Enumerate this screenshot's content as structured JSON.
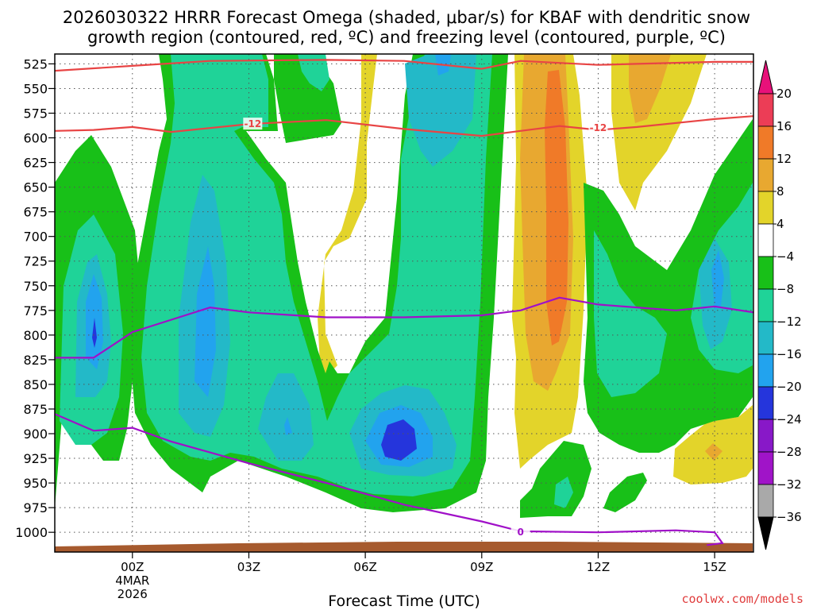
{
  "chart_data": {
    "type": "contour",
    "title_line1": "2026030322 HRRR Forecast Omega (shaded, μbar/s) for KBAF with dendritic snow",
    "title_line2": "growth region (contoured, red, ºC) and freezing level (contoured, purple, ºC)",
    "xlabel": "Forecast Time (UTC)",
    "credit": "coolwx.com/models",
    "x_ticks": [
      {
        "hour": 0,
        "label": "00Z",
        "sub1": "4MAR",
        "sub2": "2026"
      },
      {
        "hour": 3,
        "label": "03Z",
        "sub1": "",
        "sub2": ""
      },
      {
        "hour": 6,
        "label": "06Z",
        "sub1": "",
        "sub2": ""
      },
      {
        "hour": 9,
        "label": "09Z",
        "sub1": "",
        "sub2": ""
      },
      {
        "hour": 12,
        "label": "12Z",
        "sub1": "",
        "sub2": ""
      },
      {
        "hour": 15,
        "label": "15Z",
        "sub1": "",
        "sub2": ""
      }
    ],
    "x_range": [
      -2,
      16
    ],
    "y_levels": [
      525,
      550,
      575,
      600,
      625,
      650,
      675,
      700,
      725,
      750,
      775,
      800,
      825,
      850,
      875,
      900,
      925,
      950,
      975,
      1000
    ],
    "y_range": [
      515,
      1020
    ],
    "colorbar": {
      "levels": [
        "20",
        "16",
        "12",
        "8",
        "4",
        "−4",
        "−8",
        "−12",
        "−16",
        "−20",
        "−24",
        "−28",
        "−32",
        "−36"
      ],
      "colors": [
        "#ec3d56",
        "#f07a28",
        "#e8a830",
        "#e3d42a",
        "#ffffff",
        "#18c018",
        "#1fd398",
        "#23b9c8",
        "#22a3ee",
        "#2535dc",
        "#8818c8",
        "#a014c8",
        "#a9a9a9"
      ],
      "top_arrow_color": "#e8117a",
      "bottom_arrow_color": "#000000"
    },
    "contours": [
      {
        "name": "dgz-top",
        "label": "",
        "color": "#e84444",
        "points": [
          [
            -2,
            532
          ],
          [
            0,
            527
          ],
          [
            2,
            522
          ],
          [
            5,
            521
          ],
          [
            7,
            522
          ],
          [
            9,
            530
          ],
          [
            10,
            522
          ],
          [
            11,
            524
          ],
          [
            12,
            526
          ],
          [
            13,
            525
          ],
          [
            15,
            523
          ],
          [
            16,
            523
          ]
        ]
      },
      {
        "name": "dgz-bottom",
        "label": "-12",
        "color": "#e84444",
        "label_at": [
          3.1,
          586
        ],
        "label2": "-12",
        "label2_at": [
          12.0,
          590
        ],
        "points": [
          [
            -2,
            593
          ],
          [
            -1,
            592
          ],
          [
            0,
            589
          ],
          [
            1,
            594
          ],
          [
            3,
            586
          ],
          [
            5,
            582
          ],
          [
            7,
            591
          ],
          [
            9,
            598
          ],
          [
            10,
            593
          ],
          [
            11,
            588
          ],
          [
            12,
            592
          ],
          [
            13,
            589
          ],
          [
            15,
            581
          ],
          [
            16,
            578
          ]
        ]
      },
      {
        "name": "freezing-level-upper",
        "label": "",
        "color": "#a010c8",
        "points": [
          [
            -2,
            823
          ],
          [
            -1,
            823
          ],
          [
            0,
            797
          ],
          [
            2,
            772
          ],
          [
            3,
            777
          ],
          [
            5,
            782
          ],
          [
            7,
            782
          ],
          [
            9,
            780
          ],
          [
            10,
            775
          ],
          [
            11,
            762
          ],
          [
            12,
            769
          ],
          [
            13,
            772
          ],
          [
            14,
            775
          ],
          [
            15,
            771
          ],
          [
            16,
            777
          ]
        ]
      },
      {
        "name": "freezing-level-lower",
        "label": "0",
        "color": "#a010c8",
        "label_at": [
          10.0,
          1000
        ],
        "points": [
          [
            -2,
            880
          ],
          [
            -1,
            897
          ],
          [
            0,
            894
          ],
          [
            1,
            908
          ],
          [
            3,
            930
          ],
          [
            5,
            950
          ],
          [
            7,
            972
          ],
          [
            9,
            989
          ],
          [
            10,
            999
          ],
          [
            12,
            1000
          ],
          [
            14,
            998
          ],
          [
            15,
            1000
          ],
          [
            15.2,
            1011
          ],
          [
            14.8,
            1013
          ]
        ]
      }
    ]
  }
}
